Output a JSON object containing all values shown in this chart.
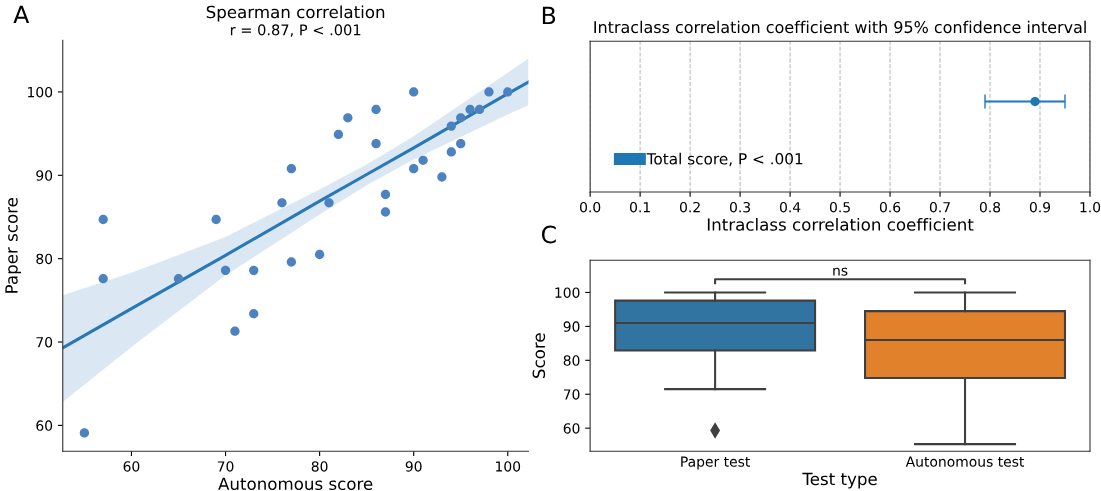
{
  "chart_data": [
    {
      "type": "scatter",
      "title": "Spearman correlation",
      "subtitle": "r = 0.87, P < .001",
      "xlabel": "Autonomous score",
      "ylabel": "Paper score",
      "annotations": [
        "A"
      ],
      "xlim": [
        52.7,
        102.2
      ],
      "ylim": [
        56.9,
        106.2
      ],
      "xticks": [
        60,
        70,
        80,
        90,
        100
      ],
      "yticks": [
        60,
        70,
        80,
        90,
        100
      ],
      "series": [
        {
          "type": "scatter",
          "marker": "circle",
          "color": "#4c82c0",
          "x": [
            55,
            57,
            57,
            65,
            69,
            70,
            73,
            73,
            71,
            76,
            77,
            77,
            80,
            81,
            82,
            83,
            86,
            86,
            87,
            87,
            90,
            90,
            91,
            93,
            94,
            94,
            95,
            95,
            96,
            97,
            98,
            100
          ],
          "values": [
            59.1,
            84.7,
            77.6,
            77.6,
            84.7,
            78.6,
            78.6,
            73.4,
            71.3,
            86.7,
            90.8,
            79.6,
            80.5,
            86.7,
            94.9,
            96.9,
            97.9,
            93.8,
            87.7,
            85.6,
            100,
            90.8,
            91.8,
            89.8,
            95.9,
            92.8,
            96.9,
            93.8,
            97.9,
            97.9,
            100,
            100
          ]
        },
        {
          "type": "line",
          "marker": "none",
          "color": "#2878b8",
          "x": [
            52.7,
            60,
            70,
            80,
            85,
            90,
            100,
            102.2
          ],
          "values": [
            69.3,
            74.0,
            80.4,
            86.9,
            90.1,
            93.3,
            99.8,
            101.2
          ],
          "lower": [
            62.8,
            69.4,
            78.0,
            85.3,
            88.8,
            91.9,
            97.3,
            98.4
          ],
          "upper": [
            75.6,
            78.3,
            82.6,
            88.3,
            91.3,
            94.7,
            102.3,
            104.0
          ]
        }
      ]
    },
    {
      "type": "scatter",
      "orientation": "horizontal",
      "title": "Intraclass correlation coefficient with 95% confidence interval",
      "xlabel": "Intraclass correlation coefficient",
      "annotations": [
        "B"
      ],
      "categories": [
        null
      ],
      "xlim": [
        0,
        1
      ],
      "xticks": [
        {
          "value": 0,
          "label": "0.0"
        },
        0.1,
        0.2,
        0.3,
        0.4,
        0.5,
        0.6,
        0.7,
        0.8,
        0.9,
        {
          "value": 1,
          "label": "1.0"
        }
      ],
      "grid": "x",
      "legend": "bottom left",
      "tick_labels": "x",
      "marker": "circle",
      "series": [
        {
          "name": "Total score, P < .001",
          "color": "#1f77b4",
          "values": [
            0.89
          ],
          "errors": [
            [
              0.79,
              0.95
            ]
          ]
        }
      ]
    },
    {
      "type": "box",
      "xlabel": "Test type",
      "ylabel": "Score",
      "annotations": [
        "C",
        "ns"
      ],
      "categories": [
        "Paper test",
        "Autonomous test"
      ],
      "colors": [
        "#3274a1",
        "#e1812c"
      ],
      "ylim": [
        53.2,
        109.5
      ],
      "yticks": [
        60,
        70,
        80,
        90,
        100
      ],
      "boxes": [
        {
          "low": 71.5,
          "q1": 82.9,
          "median": 91.0,
          "q3": 97.6,
          "high": 100,
          "outliers": [
            59.3
          ]
        },
        {
          "low": 55.3,
          "q1": 74.8,
          "median": 86.0,
          "q3": 94.5,
          "high": 100
        }
      ]
    }
  ]
}
